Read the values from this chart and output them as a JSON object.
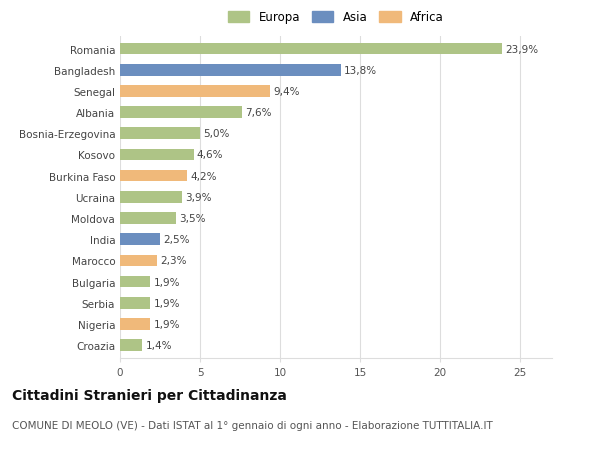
{
  "categories": [
    "Romania",
    "Bangladesh",
    "Senegal",
    "Albania",
    "Bosnia-Erzegovina",
    "Kosovo",
    "Burkina Faso",
    "Ucraina",
    "Moldova",
    "India",
    "Marocco",
    "Bulgaria",
    "Serbia",
    "Nigeria",
    "Croazia"
  ],
  "values": [
    23.9,
    13.8,
    9.4,
    7.6,
    5.0,
    4.6,
    4.2,
    3.9,
    3.5,
    2.5,
    2.3,
    1.9,
    1.9,
    1.9,
    1.4
  ],
  "labels": [
    "23,9%",
    "13,8%",
    "9,4%",
    "7,6%",
    "5,0%",
    "4,6%",
    "4,2%",
    "3,9%",
    "3,5%",
    "2,5%",
    "2,3%",
    "1,9%",
    "1,9%",
    "1,9%",
    "1,4%"
  ],
  "colors": [
    "#aec486",
    "#6b8ebf",
    "#f0b97a",
    "#aec486",
    "#aec486",
    "#aec486",
    "#f0b97a",
    "#aec486",
    "#aec486",
    "#6b8ebf",
    "#f0b97a",
    "#aec486",
    "#aec486",
    "#f0b97a",
    "#aec486"
  ],
  "legend_labels": [
    "Europa",
    "Asia",
    "Africa"
  ],
  "legend_colors": [
    "#aec486",
    "#6b8ebf",
    "#f0b97a"
  ],
  "title": "Cittadini Stranieri per Cittadinanza",
  "subtitle": "COMUNE DI MEOLO (VE) - Dati ISTAT al 1° gennaio di ogni anno - Elaborazione TUTTITALIA.IT",
  "xlim": [
    0,
    27
  ],
  "xticks": [
    0,
    5,
    10,
    15,
    20,
    25
  ],
  "bg_color": "#ffffff",
  "grid_color": "#dddddd",
  "bar_height": 0.55,
  "label_fontsize": 7.5,
  "title_fontsize": 10,
  "subtitle_fontsize": 7.5,
  "tick_fontsize": 7.5,
  "legend_fontsize": 8.5
}
